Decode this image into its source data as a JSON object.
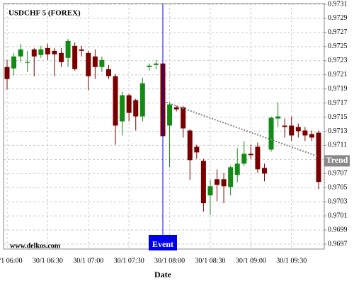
{
  "chart_data": {
    "type": "candlestick",
    "title": "USDCHF 5 (FOREX)",
    "watermark": "www.delkos.com",
    "x_label": "Date",
    "up_color": "#138a13",
    "down_color": "#7a0000",
    "grid": true,
    "categories": [
      "30/1 06:00",
      null,
      null,
      null,
      null,
      null,
      "30/1 06:30",
      null,
      null,
      null,
      null,
      null,
      "30/1 07:00",
      null,
      null,
      null,
      null,
      null,
      "30/1 07:30",
      null,
      null,
      null,
      null,
      null,
      "30/1 08:00",
      null,
      null,
      null,
      null,
      null,
      "30/1 08:30",
      null,
      null,
      null,
      null,
      null,
      "30/1 09:00",
      null,
      null,
      null,
      null,
      null,
      "30/1 09:30",
      null,
      null,
      null,
      null
    ],
    "open": [
      0.97221,
      0.97219,
      0.97236,
      0.97228,
      0.97246,
      0.97238,
      0.97248,
      0.97244,
      0.97241,
      0.97234,
      0.97251,
      0.97246,
      0.97241,
      0.97236,
      0.97221,
      0.97218,
      0.97208,
      0.97144,
      0.97181,
      0.97174,
      0.97151,
      0.97221,
      0.97224,
      0.97226,
      0.97138,
      0.97164,
      0.97164,
      0.97131,
      0.97108,
      0.97088,
      0.97039,
      0.97062,
      0.97062,
      0.97051,
      0.97068,
      0.97084,
      0.97098,
      0.97108,
      0.97078,
      0.97104,
      0.97148,
      0.97138,
      0.97138,
      0.97136,
      0.97131,
      0.97126,
      0.97128
    ],
    "high": [
      0.97231,
      0.97241,
      0.97254,
      0.97244,
      0.97248,
      0.97251,
      0.97254,
      0.97248,
      0.97248,
      0.97261,
      0.97256,
      0.97251,
      0.97244,
      0.97246,
      0.97236,
      0.97224,
      0.97211,
      0.97186,
      0.97183,
      0.97176,
      0.97206,
      0.97226,
      0.97231,
      0.97236,
      0.97171,
      0.97166,
      0.97166,
      0.97133,
      0.97111,
      0.97091,
      0.97061,
      0.97076,
      0.97071,
      0.97081,
      0.97106,
      0.97116,
      0.97111,
      0.97114,
      0.97084,
      0.97151,
      0.97171,
      0.97148,
      0.97151,
      0.97141,
      0.97136,
      0.97131,
      0.97131
    ],
    "low": [
      0.97189,
      0.97209,
      0.97228,
      0.97214,
      0.97208,
      0.97234,
      0.97231,
      0.97208,
      0.97221,
      0.97221,
      0.97216,
      0.97236,
      0.97188,
      0.97204,
      0.97214,
      0.97204,
      0.97111,
      0.97124,
      0.97144,
      0.97131,
      0.97144,
      0.97216,
      0.97218,
      0.97106,
      0.97079,
      0.97158,
      0.97121,
      0.97061,
      0.97091,
      0.97016,
      0.97011,
      0.97031,
      0.97028,
      0.97039,
      0.97058,
      0.97081,
      0.97091,
      0.97071,
      0.97059,
      0.97101,
      0.97136,
      0.97121,
      0.97116,
      0.97121,
      0.97116,
      0.97116,
      0.97048
    ],
    "close": [
      0.97204,
      0.97236,
      0.97246,
      0.97228,
      0.97236,
      0.97246,
      0.97239,
      0.97239,
      0.97228,
      0.97258,
      0.97218,
      0.97244,
      0.97208,
      0.97221,
      0.97231,
      0.97208,
      0.97138,
      0.97181,
      0.97156,
      0.97151,
      0.97198,
      0.97223,
      0.97226,
      0.97123,
      0.97168,
      0.97161,
      0.97134,
      0.97089,
      0.971,
      0.97028,
      0.97052,
      0.97054,
      0.97052,
      0.97079,
      0.97084,
      0.97098,
      0.97096,
      0.97076,
      0.9707,
      0.97149,
      0.97151,
      0.97136,
      0.97124,
      0.9713,
      0.97124,
      0.97121,
      0.97058
    ],
    "ylim": [
      0.96963,
      0.97311
    ],
    "yticks": [
      0.9697,
      0.9699,
      0.9701,
      0.9703,
      0.9705,
      0.9707,
      0.9709,
      0.9711,
      0.9713,
      0.9715,
      0.9717,
      0.9719,
      0.9721,
      0.9723,
      0.9725,
      0.9727,
      0.9729,
      0.9731
    ],
    "event": {
      "label": "Event",
      "color": "#0000ee"
    },
    "trend": {
      "label": "Trend",
      "color": "#888888",
      "values": [
        0.97171,
        0.97094
      ]
    }
  }
}
